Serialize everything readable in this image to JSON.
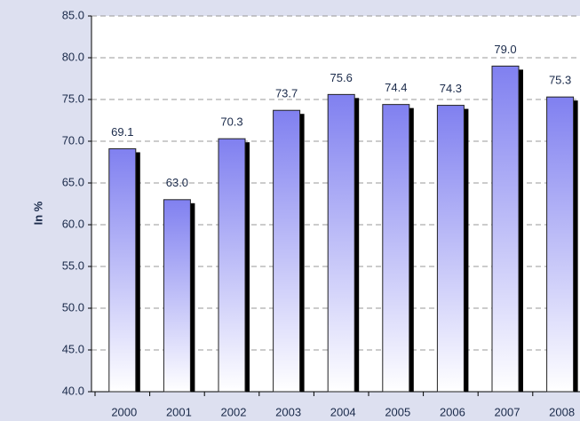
{
  "chart_data": {
    "type": "bar",
    "y_label": "In %",
    "categories": [
      "2000",
      "2001",
      "2002",
      "2003",
      "2004",
      "2005",
      "2006",
      "2007",
      "2008"
    ],
    "values": [
      69.1,
      63.0,
      70.3,
      73.7,
      75.6,
      74.4,
      74.3,
      79.0,
      75.3
    ],
    "value_labels": [
      "69.1",
      "63.0",
      "70.3",
      "73.7",
      "75.6",
      "74.4",
      "74.3",
      "79.0",
      "75.3"
    ],
    "color": "#8080f0",
    "ylim": [
      40,
      85
    ],
    "yticks": [
      {
        "value": 40,
        "label": "40.0"
      },
      {
        "value": 45,
        "label": "45.0"
      },
      {
        "value": 50,
        "label": "50.0"
      },
      {
        "value": 55,
        "label": "55.0"
      },
      {
        "value": 60,
        "label": "60.0"
      },
      {
        "value": 65,
        "label": "65.0"
      },
      {
        "value": 70,
        "label": "70.0"
      },
      {
        "value": 75,
        "label": "75.0"
      },
      {
        "value": 80,
        "label": "80.0"
      },
      {
        "value": 85,
        "label": "85.0"
      }
    ],
    "grid": true
  }
}
